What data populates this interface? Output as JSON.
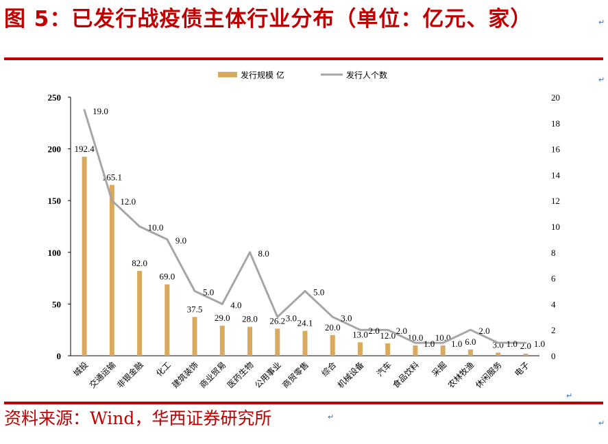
{
  "header": {
    "title": "图 5：已发行战疫债主体行业分布（单位：亿元、家）"
  },
  "footer": {
    "source": "资料来源：Wind，华西证券研究所"
  },
  "colors": {
    "accent": "#c00000",
    "bar": "#d9aa5e",
    "line": "#a6a6a6"
  },
  "chart_data": {
    "type": "bar",
    "categories": [
      "城投",
      "交通运输",
      "非银金融",
      "化工",
      "建筑装饰",
      "商业贸易",
      "医药生物",
      "公用事业",
      "商贸零售",
      "综合",
      "机械设备",
      "汽车",
      "食品饮料",
      "采掘",
      "农林牧渔",
      "休闲服务",
      "电子"
    ],
    "series": [
      {
        "name": "发行规模   亿",
        "type": "bar",
        "axis": "left",
        "values": [
          192.4,
          165.1,
          82.0,
          69.0,
          37.5,
          29.0,
          28.0,
          26.2,
          24.1,
          20.0,
          13.0,
          12.0,
          10.0,
          10.0,
          6.0,
          3.0,
          2.0
        ],
        "labels": [
          "192.4",
          "165.1",
          "82.0",
          "69.0",
          "37.5",
          "29.0",
          "28.0",
          "26.2",
          "24.1",
          "20.0",
          "13.0",
          "12.0",
          "10.0",
          "10.0",
          "6.0",
          "3.0",
          "2.0"
        ]
      },
      {
        "name": "发行人个数",
        "type": "line",
        "axis": "right",
        "values": [
          19,
          12,
          10,
          9,
          5,
          4,
          8,
          3,
          5,
          3,
          2,
          2,
          1,
          1,
          2,
          1,
          1
        ],
        "labels": [
          "19.0",
          "12.0",
          "10.0",
          "9.0",
          "5.0",
          "4.0",
          "8.0",
          "3.0",
          "5.0",
          "3.0",
          "2.0",
          "2.0",
          "1.0",
          "1.0",
          "2.0",
          "1.0",
          "1.0"
        ]
      }
    ],
    "ylim": [
      0,
      250
    ],
    "yticks": [
      "0",
      "50",
      "100",
      "150",
      "200",
      "250"
    ],
    "y2lim": [
      0,
      20
    ],
    "y2ticks": [
      "0",
      "2",
      "4",
      "6",
      "8",
      "10",
      "12",
      "14",
      "16",
      "18",
      "20"
    ],
    "legend": "top-center",
    "grid": false
  }
}
